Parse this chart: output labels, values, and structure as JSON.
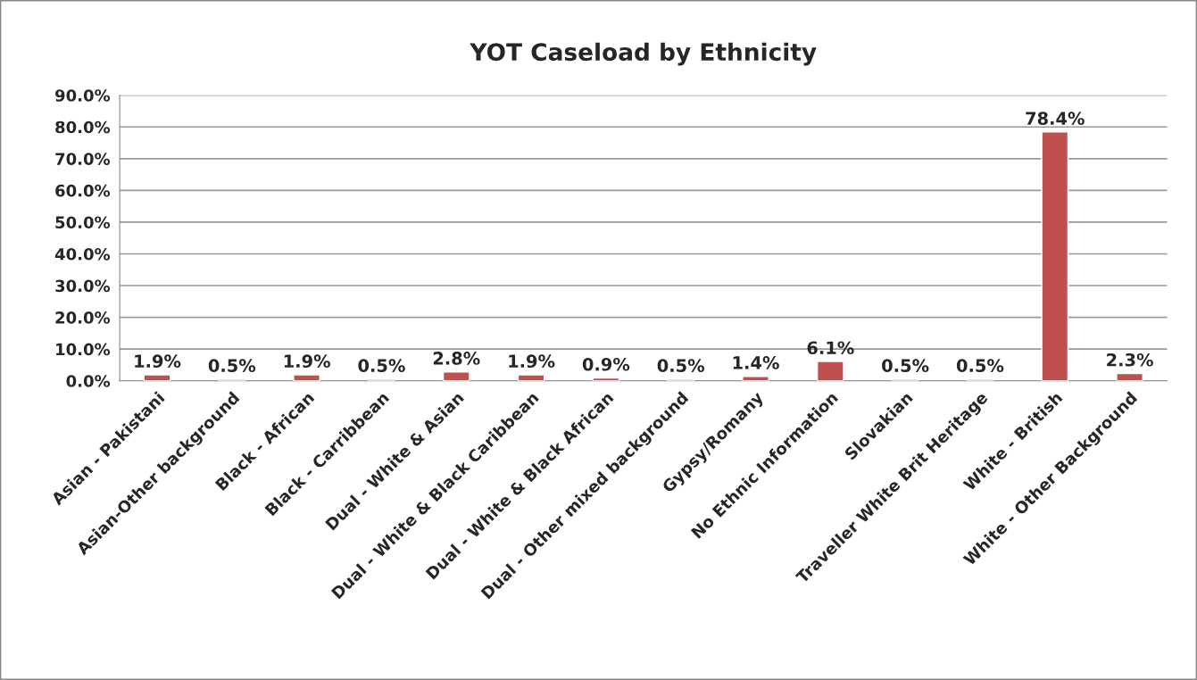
{
  "chart_data": {
    "type": "bar",
    "title": "YOT Caseload by Ethnicity",
    "categories": [
      "Asian - Pakistani",
      "Asian-Other background",
      "Black - African",
      "Black - Carribbean",
      "Dual - White & Asian",
      "Dual - White & Black Caribbean",
      "Dual - White & Black African",
      "Dual - Other mixed background",
      "Gypsy/Romany",
      "No Ethnic Information",
      "Slovakian",
      "Traveller White Brit Heritage",
      "White - British",
      "White - Other Background"
    ],
    "values": [
      1.9,
      0.5,
      1.9,
      0.5,
      2.8,
      1.9,
      0.9,
      0.5,
      1.4,
      6.1,
      0.5,
      0.5,
      78.4,
      2.3
    ],
    "value_labels": [
      "1.9%",
      "0.5%",
      "1.9%",
      "0.5%",
      "2.8%",
      "1.9%",
      "0.9%",
      "0.5%",
      "1.4%",
      "6.1%",
      "0.5%",
      "0.5%",
      "78.4%",
      "2.3%"
    ],
    "color": "#c0504d",
    "ylim": [
      0,
      90
    ],
    "yticks": [
      {
        "value": 0,
        "label": "0.0%"
      },
      {
        "value": 10,
        "label": "10.0%"
      },
      {
        "value": 20,
        "label": "20.0%"
      },
      {
        "value": 30,
        "label": "30.0%"
      },
      {
        "value": 40,
        "label": "40.0%"
      },
      {
        "value": 50,
        "label": "50.0%"
      },
      {
        "value": 60,
        "label": "60.0%"
      },
      {
        "value": 70,
        "label": "70.0%"
      },
      {
        "value": 80,
        "label": "80.0%"
      },
      {
        "value": 90,
        "label": "90.0%"
      }
    ],
    "grid": "y"
  }
}
